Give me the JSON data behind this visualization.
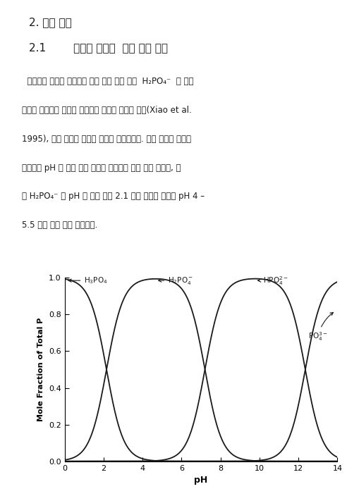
{
  "pKa1": 2.15,
  "pKa2": 7.2,
  "pKa3": 12.35,
  "pH_min": 0,
  "pH_max": 14,
  "ylim": [
    0.0,
    1.0
  ],
  "yticks": [
    0.0,
    0.2,
    0.4,
    0.6,
    0.8,
    1.0
  ],
  "xticks": [
    0,
    2,
    4,
    6,
    8,
    10,
    12,
    14
  ],
  "xlabel": "pH",
  "ylabel": "Mole Fraction of Total P",
  "line_color": "#1a1a1a",
  "line_width": 1.3,
  "bg_color": "#ffffff",
  "figsize": [
    5.09,
    7.04
  ],
  "dpi": 100,
  "header1": "2. 관련 이론",
  "header2": "2.1        코발트 전극의  인산 이온 감지",
  "body_lines": [
    "  코발트가 인산에 존재하는 여러 이온 형태 중에  H₂PO₄⁻  와 선택",
    "력으로 효과적인 반응이 보인다는 연구가 진행된 이후(Xiao et al.",
    "1995), 인산 측정에 코발트 금속이 활용되었다. 인산 이온은 수용액",
    "상태에서 pH 에 따라 여러 형태의 이온으로 존재 하게 되는데, 그",
    "중 H₂PO₄⁻ 는 pH 는 아래 그림 2.1 에서 나타난 것성럼 pH 4 –",
    "5.5 에서 가장 많이 존재한다."
  ]
}
